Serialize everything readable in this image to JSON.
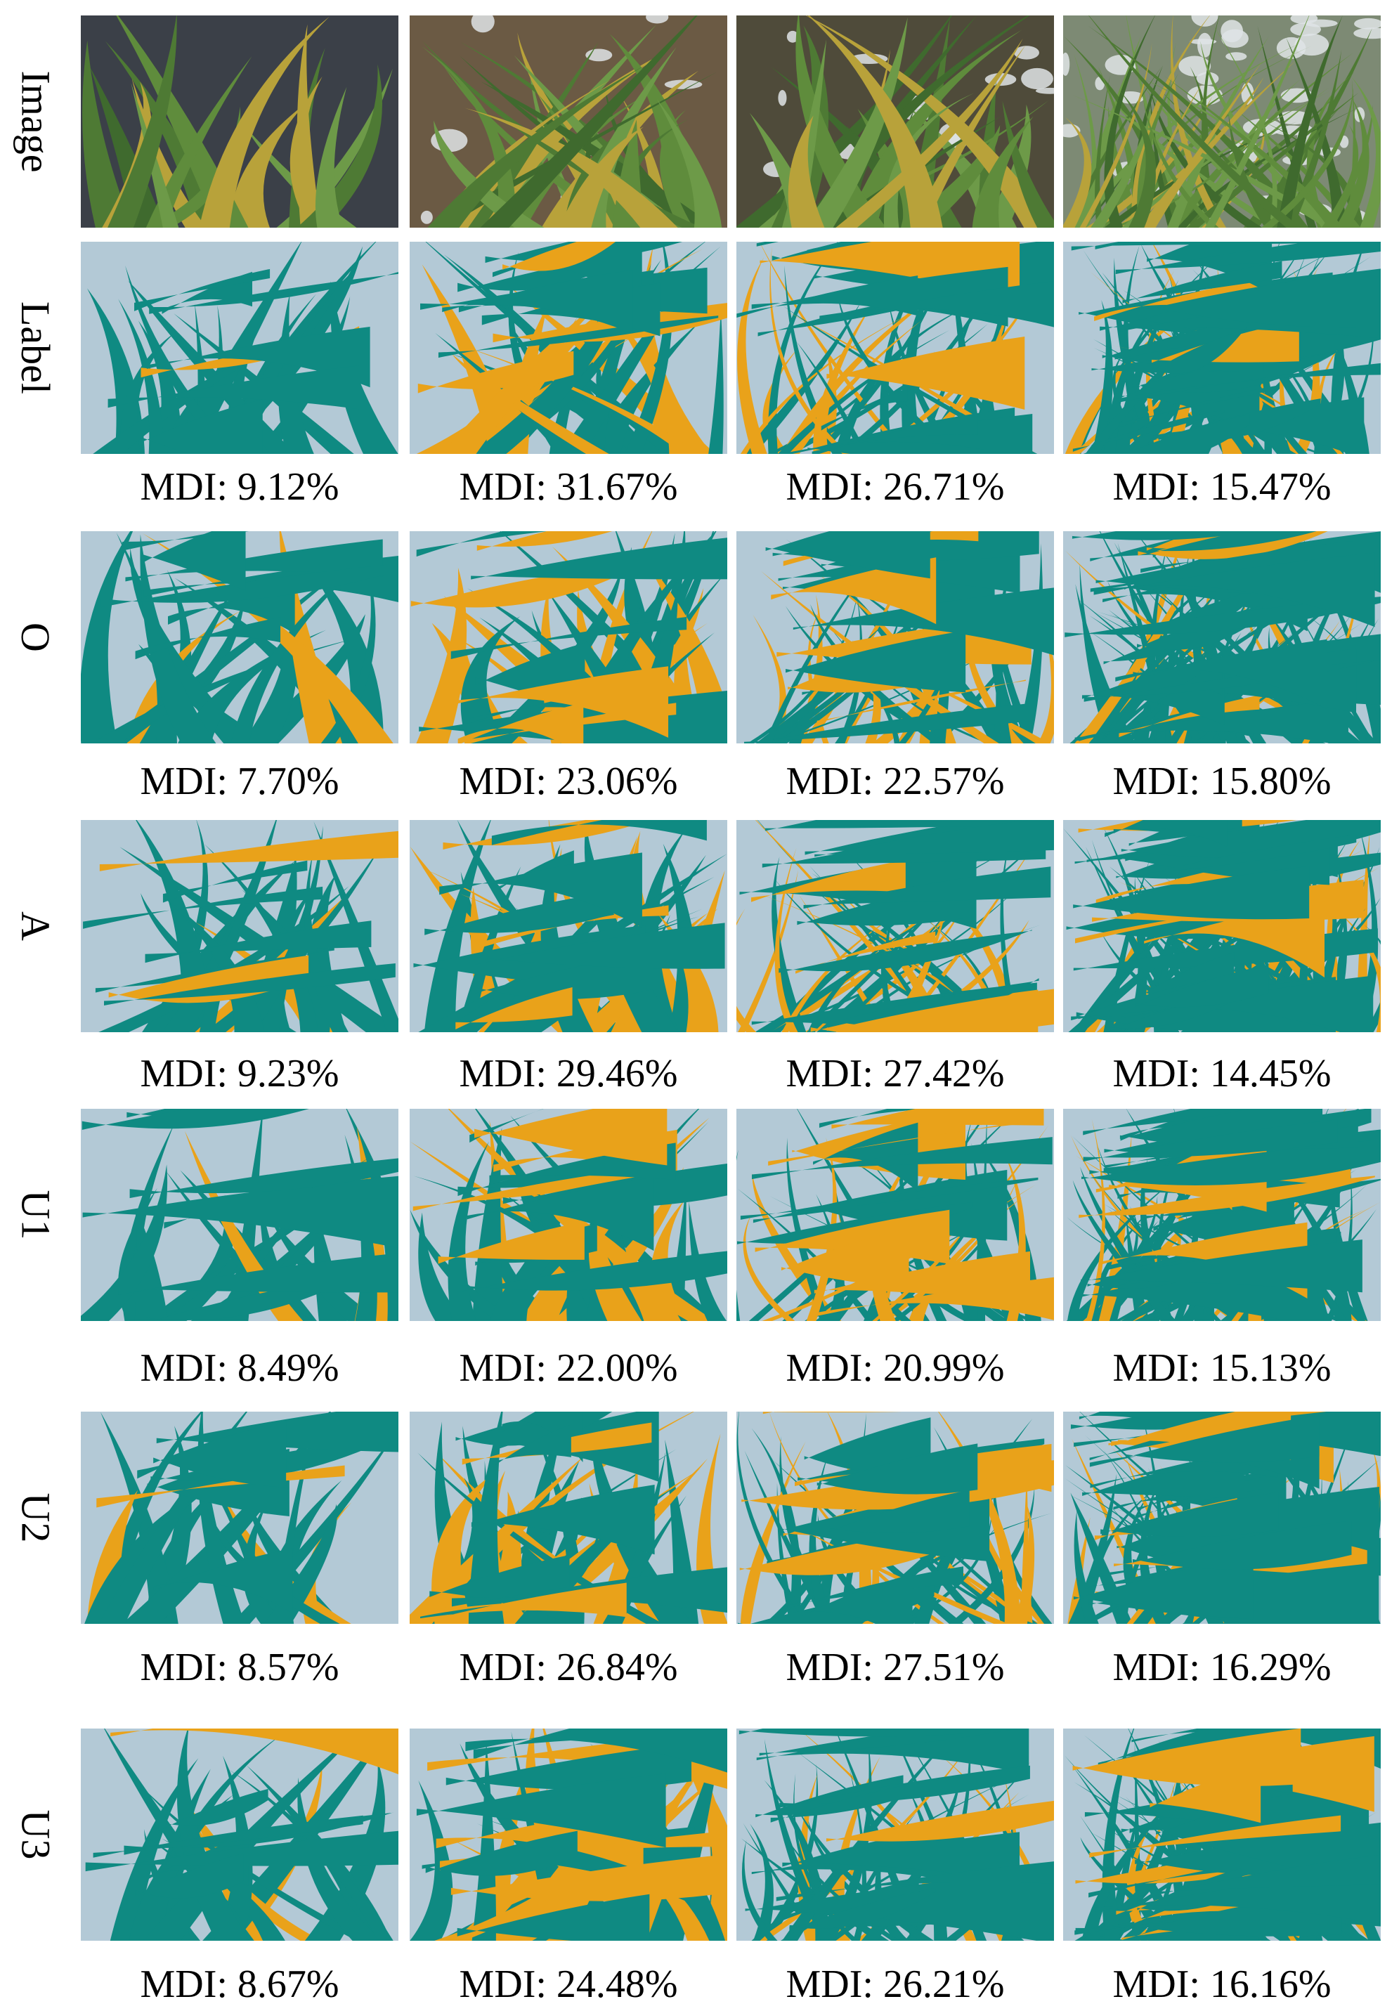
{
  "colors": {
    "background": "#b3c9d6",
    "healthy_leaf": "#0f8a82",
    "diseased_leaf": "#e9a21a"
  },
  "rows": [
    {
      "label": "Image",
      "captions": []
    },
    {
      "label": "Label",
      "captions": [
        "MDI: 9.12%",
        "MDI: 31.67%",
        "MDI: 26.71%",
        "MDI: 15.47%"
      ]
    },
    {
      "label": "O",
      "captions": [
        "MDI: 7.70%",
        "MDI: 23.06%",
        "MDI: 22.57%",
        "MDI: 15.80%"
      ]
    },
    {
      "label": "A",
      "captions": [
        "MDI: 9.23%",
        "MDI: 29.46%",
        "MDI: 27.42%",
        "MDI: 14.45%"
      ]
    },
    {
      "label": "U1",
      "captions": [
        "MDI: 8.49%",
        "MDI: 22.00%",
        "MDI: 20.99%",
        "MDI: 15.13%"
      ]
    },
    {
      "label": "U2",
      "captions": [
        "MDI: 8.57%",
        "MDI: 26.84%",
        "MDI: 27.51%",
        "MDI: 16.29%"
      ]
    },
    {
      "label": "U3",
      "captions": [
        "MDI: 8.67%",
        "MDI: 24.48%",
        "MDI: 26.21%",
        "MDI: 16.16%"
      ]
    }
  ]
}
